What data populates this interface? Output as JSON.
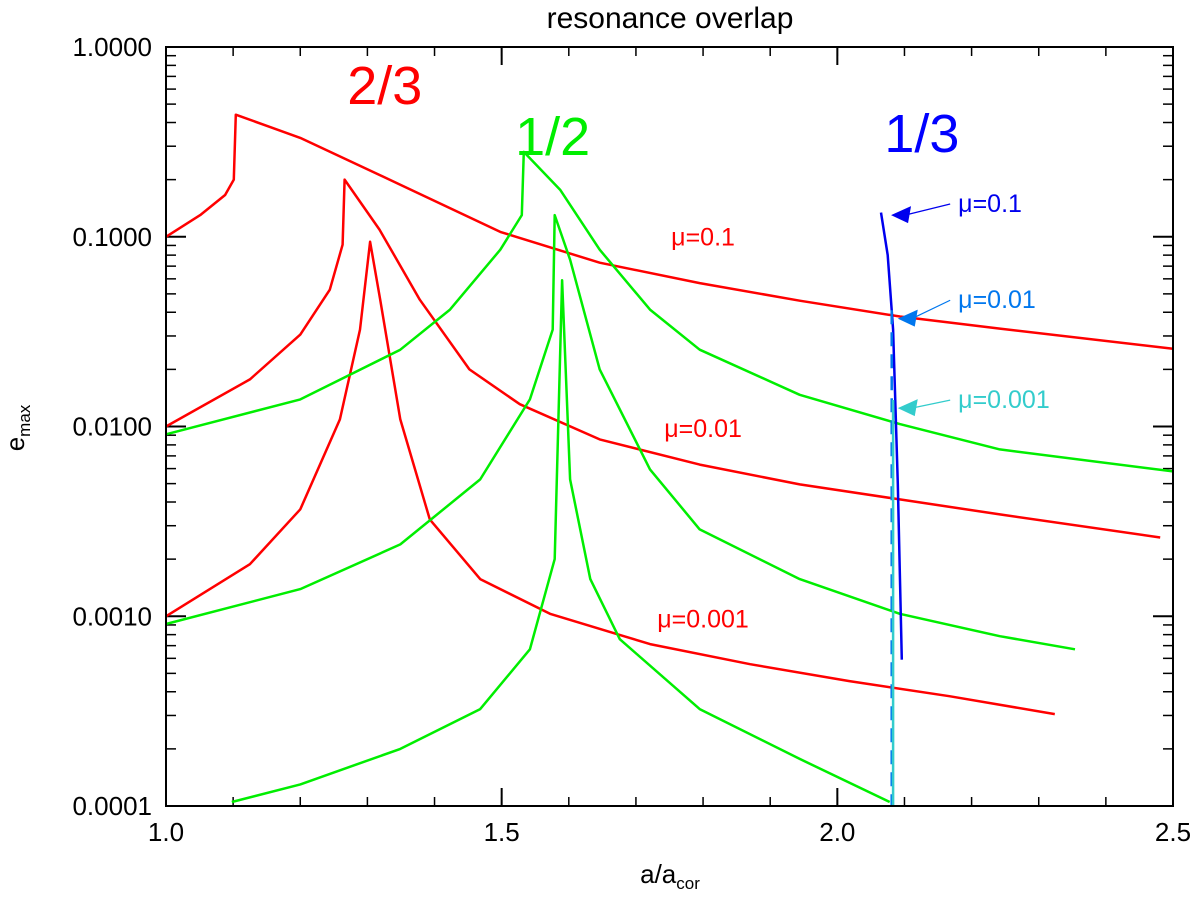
{
  "chart_data": {
    "type": "line",
    "title": "resonance overlap",
    "xlabel": "a/a",
    "xlabel_sub": "cor",
    "ylabel": "e",
    "ylabel_sub": "max",
    "xlim": [
      1.0,
      2.5
    ],
    "ylim": [
      0.0001,
      1.0
    ],
    "yscale": "log",
    "grid": false,
    "xticks": [
      1.0,
      1.5,
      2.0,
      2.5
    ],
    "xtick_labels": [
      "1.0",
      "1.5",
      "2.0",
      "2.5"
    ],
    "yticks": [
      1.0,
      0.1,
      0.01,
      0.001,
      0.0001
    ],
    "ytick_labels": [
      "1.0000",
      "0.1000",
      "0.0100",
      "0.0010",
      "0.0001"
    ],
    "resonance_labels": [
      {
        "text": "2/3",
        "color": "#ff0000",
        "x": 1.27,
        "y": 0.5
      },
      {
        "text": "1/2",
        "color": "#00ee00",
        "x": 1.52,
        "y": 0.27
      },
      {
        "text": "1/3",
        "color": "#0000ff",
        "x": 2.07,
        "y": 0.28
      }
    ],
    "series_labels": [
      {
        "text": "μ=0.1",
        "color": "#ff0000",
        "x": 1.8,
        "y": 0.09
      },
      {
        "text": "μ=0.01",
        "color": "#ff0000",
        "x": 1.8,
        "y": 0.0088
      },
      {
        "text": "μ=0.001",
        "color": "#ff0000",
        "x": 1.8,
        "y": 0.00087
      }
    ],
    "arrow_labels": [
      {
        "text": "μ=0.1",
        "color": "#0000ee",
        "x": 2.18,
        "y": 0.135,
        "target": [
          2.08,
          0.13
        ]
      },
      {
        "text": "μ=0.01",
        "color": "#0077ee",
        "x": 2.18,
        "y": 0.042,
        "target": [
          2.09,
          0.037
        ]
      },
      {
        "text": "μ=0.001",
        "color": "#33cccc",
        "x": 2.18,
        "y": 0.0125,
        "target": [
          2.09,
          0.0125
        ]
      }
    ],
    "series": [
      {
        "resonance": "2/3",
        "mu": 0.1,
        "color": "#ff0000",
        "dash": false,
        "x": [
          1.0,
          1.051,
          1.088,
          1.101,
          1.104,
          1.2,
          1.349,
          1.498,
          1.646,
          1.795,
          1.944,
          2.093,
          2.242,
          2.5
        ],
        "y": [
          0.1,
          0.13,
          0.166,
          0.2,
          0.44,
          0.332,
          0.188,
          0.106,
          0.073,
          0.057,
          0.046,
          0.038,
          0.0328,
          0.0257
        ]
      },
      {
        "resonance": "2/3",
        "mu": 0.01,
        "color": "#ff0000",
        "dash": false,
        "x": [
          1.0,
          1.125,
          1.2,
          1.244,
          1.263,
          1.266,
          1.318,
          1.378,
          1.452,
          1.527,
          1.646,
          1.795,
          1.944,
          2.093,
          2.242,
          2.481
        ],
        "y": [
          0.01,
          0.0177,
          0.0305,
          0.0526,
          0.0908,
          0.2,
          0.109,
          0.0466,
          0.02,
          0.0131,
          0.00855,
          0.0063,
          0.00495,
          0.00413,
          0.00344,
          0.0026
        ]
      },
      {
        "resonance": "2/3",
        "mu": 0.001,
        "color": "#ff0000",
        "dash": false,
        "x": [
          1.0,
          1.125,
          1.2,
          1.259,
          1.289,
          1.304,
          1.319,
          1.349,
          1.393,
          1.468,
          1.572,
          1.721,
          1.87,
          2.018,
          2.167,
          2.324
        ],
        "y": [
          0.001,
          0.00188,
          0.00366,
          0.0109,
          0.0324,
          0.094,
          0.0466,
          0.0109,
          0.00324,
          0.00157,
          0.00103,
          0.000713,
          0.000559,
          0.000455,
          0.000379,
          0.000305
        ]
      },
      {
        "resonance": "1/2",
        "mu": 0.1,
        "color": "#00ee00",
        "dash": false,
        "x": [
          1.0,
          1.2,
          1.349,
          1.423,
          1.498,
          1.53,
          1.533,
          1.587,
          1.646,
          1.721,
          1.795,
          1.944,
          2.093,
          2.242,
          2.5
        ],
        "y": [
          0.0091,
          0.0139,
          0.0254,
          0.0413,
          0.0855,
          0.13,
          0.28,
          0.177,
          0.0855,
          0.0413,
          0.0254,
          0.0147,
          0.0103,
          0.00757,
          0.0058
        ]
      },
      {
        "resonance": "1/2",
        "mu": 0.01,
        "color": "#00ee00",
        "dash": false,
        "x": [
          1.0,
          1.2,
          1.349,
          1.468,
          1.542,
          1.576,
          1.579,
          1.602,
          1.646,
          1.721,
          1.795,
          1.944,
          2.093,
          2.242,
          2.354
        ],
        "y": [
          0.00091,
          0.00139,
          0.00239,
          0.00526,
          0.0139,
          0.0324,
          0.13,
          0.0757,
          0.02,
          0.00594,
          0.00287,
          0.00157,
          0.00103,
          0.000785,
          0.00067
        ]
      },
      {
        "resonance": "1/2",
        "mu": 0.001,
        "color": "#00ee00",
        "dash": false,
        "x": [
          1.098,
          1.2,
          1.349,
          1.468,
          1.542,
          1.579,
          1.59,
          1.602,
          1.632,
          1.676,
          1.795,
          1.944,
          2.078
        ],
        "y": [
          0.000105,
          0.00013,
          0.0002,
          0.000324,
          0.00067,
          0.002,
          0.059,
          0.00526,
          0.00157,
          0.000757,
          0.000324,
          0.000177,
          0.000105
        ]
      },
      {
        "resonance": "1/3",
        "mu": 0.1,
        "color": "#0000ee",
        "dash": false,
        "x": [
          2.065,
          2.075,
          2.083,
          2.09,
          2.096
        ],
        "y": [
          0.134,
          0.08,
          0.0324,
          0.005,
          0.00059
        ]
      },
      {
        "resonance": "1/3",
        "mu": 0.01,
        "color": "#0077ee",
        "dash": true,
        "x": [
          2.081,
          2.081
        ],
        "y": [
          0.041,
          0.0001
        ]
      },
      {
        "resonance": "1/3",
        "mu": 0.001,
        "color": "#33cccc",
        "dash": false,
        "x": [
          2.083,
          2.083
        ],
        "y": [
          0.0138,
          0.0001
        ]
      }
    ]
  }
}
